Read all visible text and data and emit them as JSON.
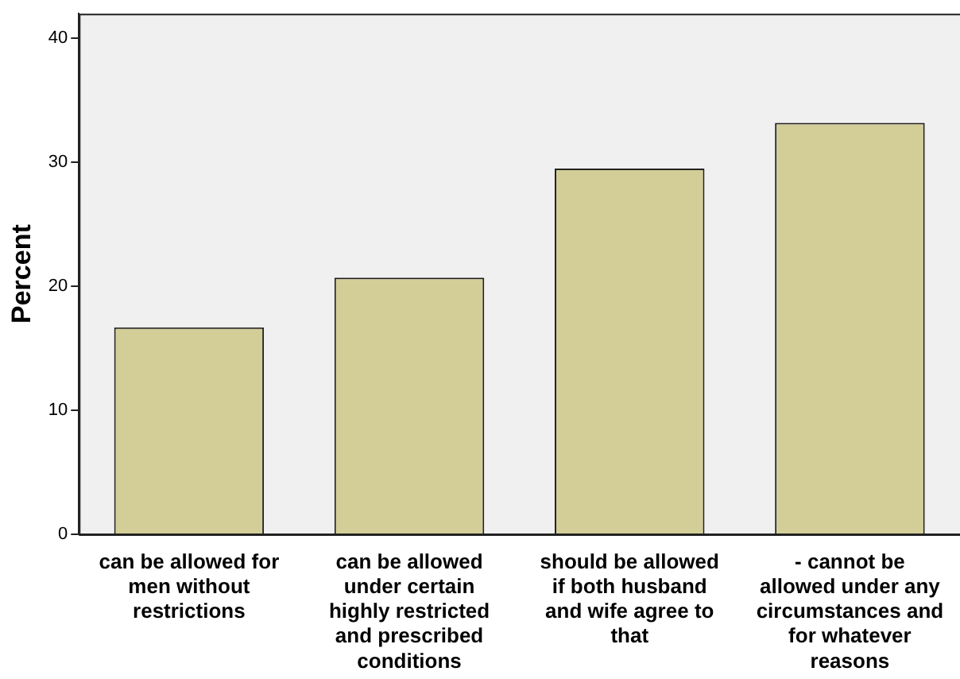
{
  "chart_data": {
    "type": "bar",
    "ylabel": "Percent",
    "categories": [
      "can be allowed for men without restrictions",
      "can be allowed under certain highly restricted and prescribed conditions",
      "should be allowed if both husband and wife agree to that",
      "- cannot be allowed under any circumstances and for whatever reasons"
    ],
    "values": [
      16.7,
      20.7,
      29.5,
      33.2
    ],
    "color": "#d3ce97",
    "ylim": [
      0,
      42
    ],
    "yticks": [
      0,
      10,
      20,
      30,
      40
    ],
    "grid": false,
    "legend": false
  }
}
